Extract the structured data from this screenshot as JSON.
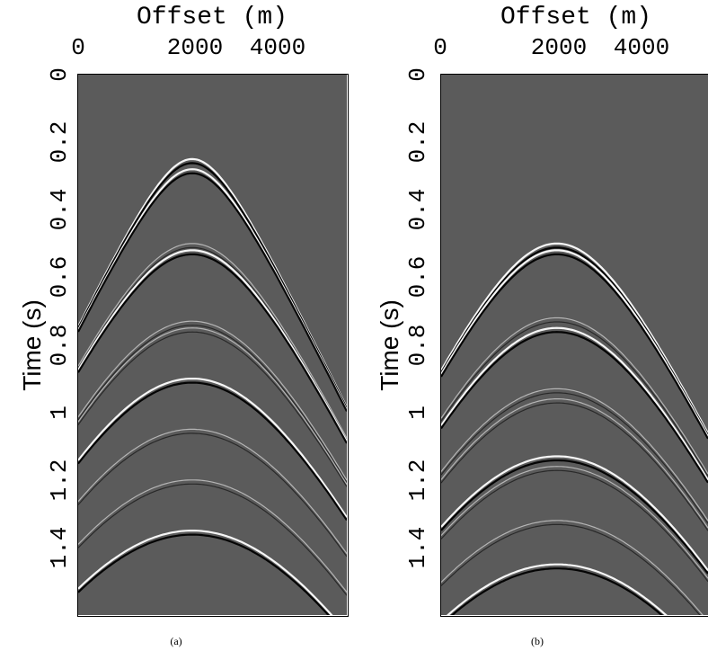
{
  "panels": [
    {
      "id": "a",
      "caption": "(a)",
      "xlabel": "Offset (m)",
      "ylabel": "Time (s)",
      "xticks": [
        "0",
        "2000",
        "4000"
      ],
      "yticks": [
        "0",
        "0.2",
        "0.4",
        "0.6",
        "0.8",
        "1",
        "1.2",
        "1.4"
      ],
      "first_arrival_time_s": 0.25,
      "apex_offset_m": 2250,
      "event_times_s": [
        0.25,
        0.28,
        0.5,
        0.52,
        0.73,
        0.75,
        0.9,
        1.05,
        1.2,
        1.35
      ]
    },
    {
      "id": "b",
      "caption": "(b)",
      "xlabel": "Offset (m)",
      "ylabel": "Time (s)",
      "xticks": [
        "0",
        "2000",
        "4000"
      ],
      "yticks": [
        "0",
        "0.2",
        "0.4",
        "0.6",
        "0.8",
        "1",
        "1.2",
        "1.4"
      ],
      "first_arrival_time_s": 0.5,
      "apex_offset_m": 2300,
      "event_times_s": [
        0.5,
        0.52,
        0.72,
        0.75,
        0.93,
        0.96,
        1.13,
        1.16,
        1.32,
        1.45
      ]
    }
  ],
  "axes": {
    "x_range_m": [
      0,
      5300
    ],
    "t_range_s": [
      0,
      1.6
    ]
  },
  "colors": {
    "background": "#5b5b5b",
    "peak": "#ffffff",
    "trough": "#000000"
  }
}
